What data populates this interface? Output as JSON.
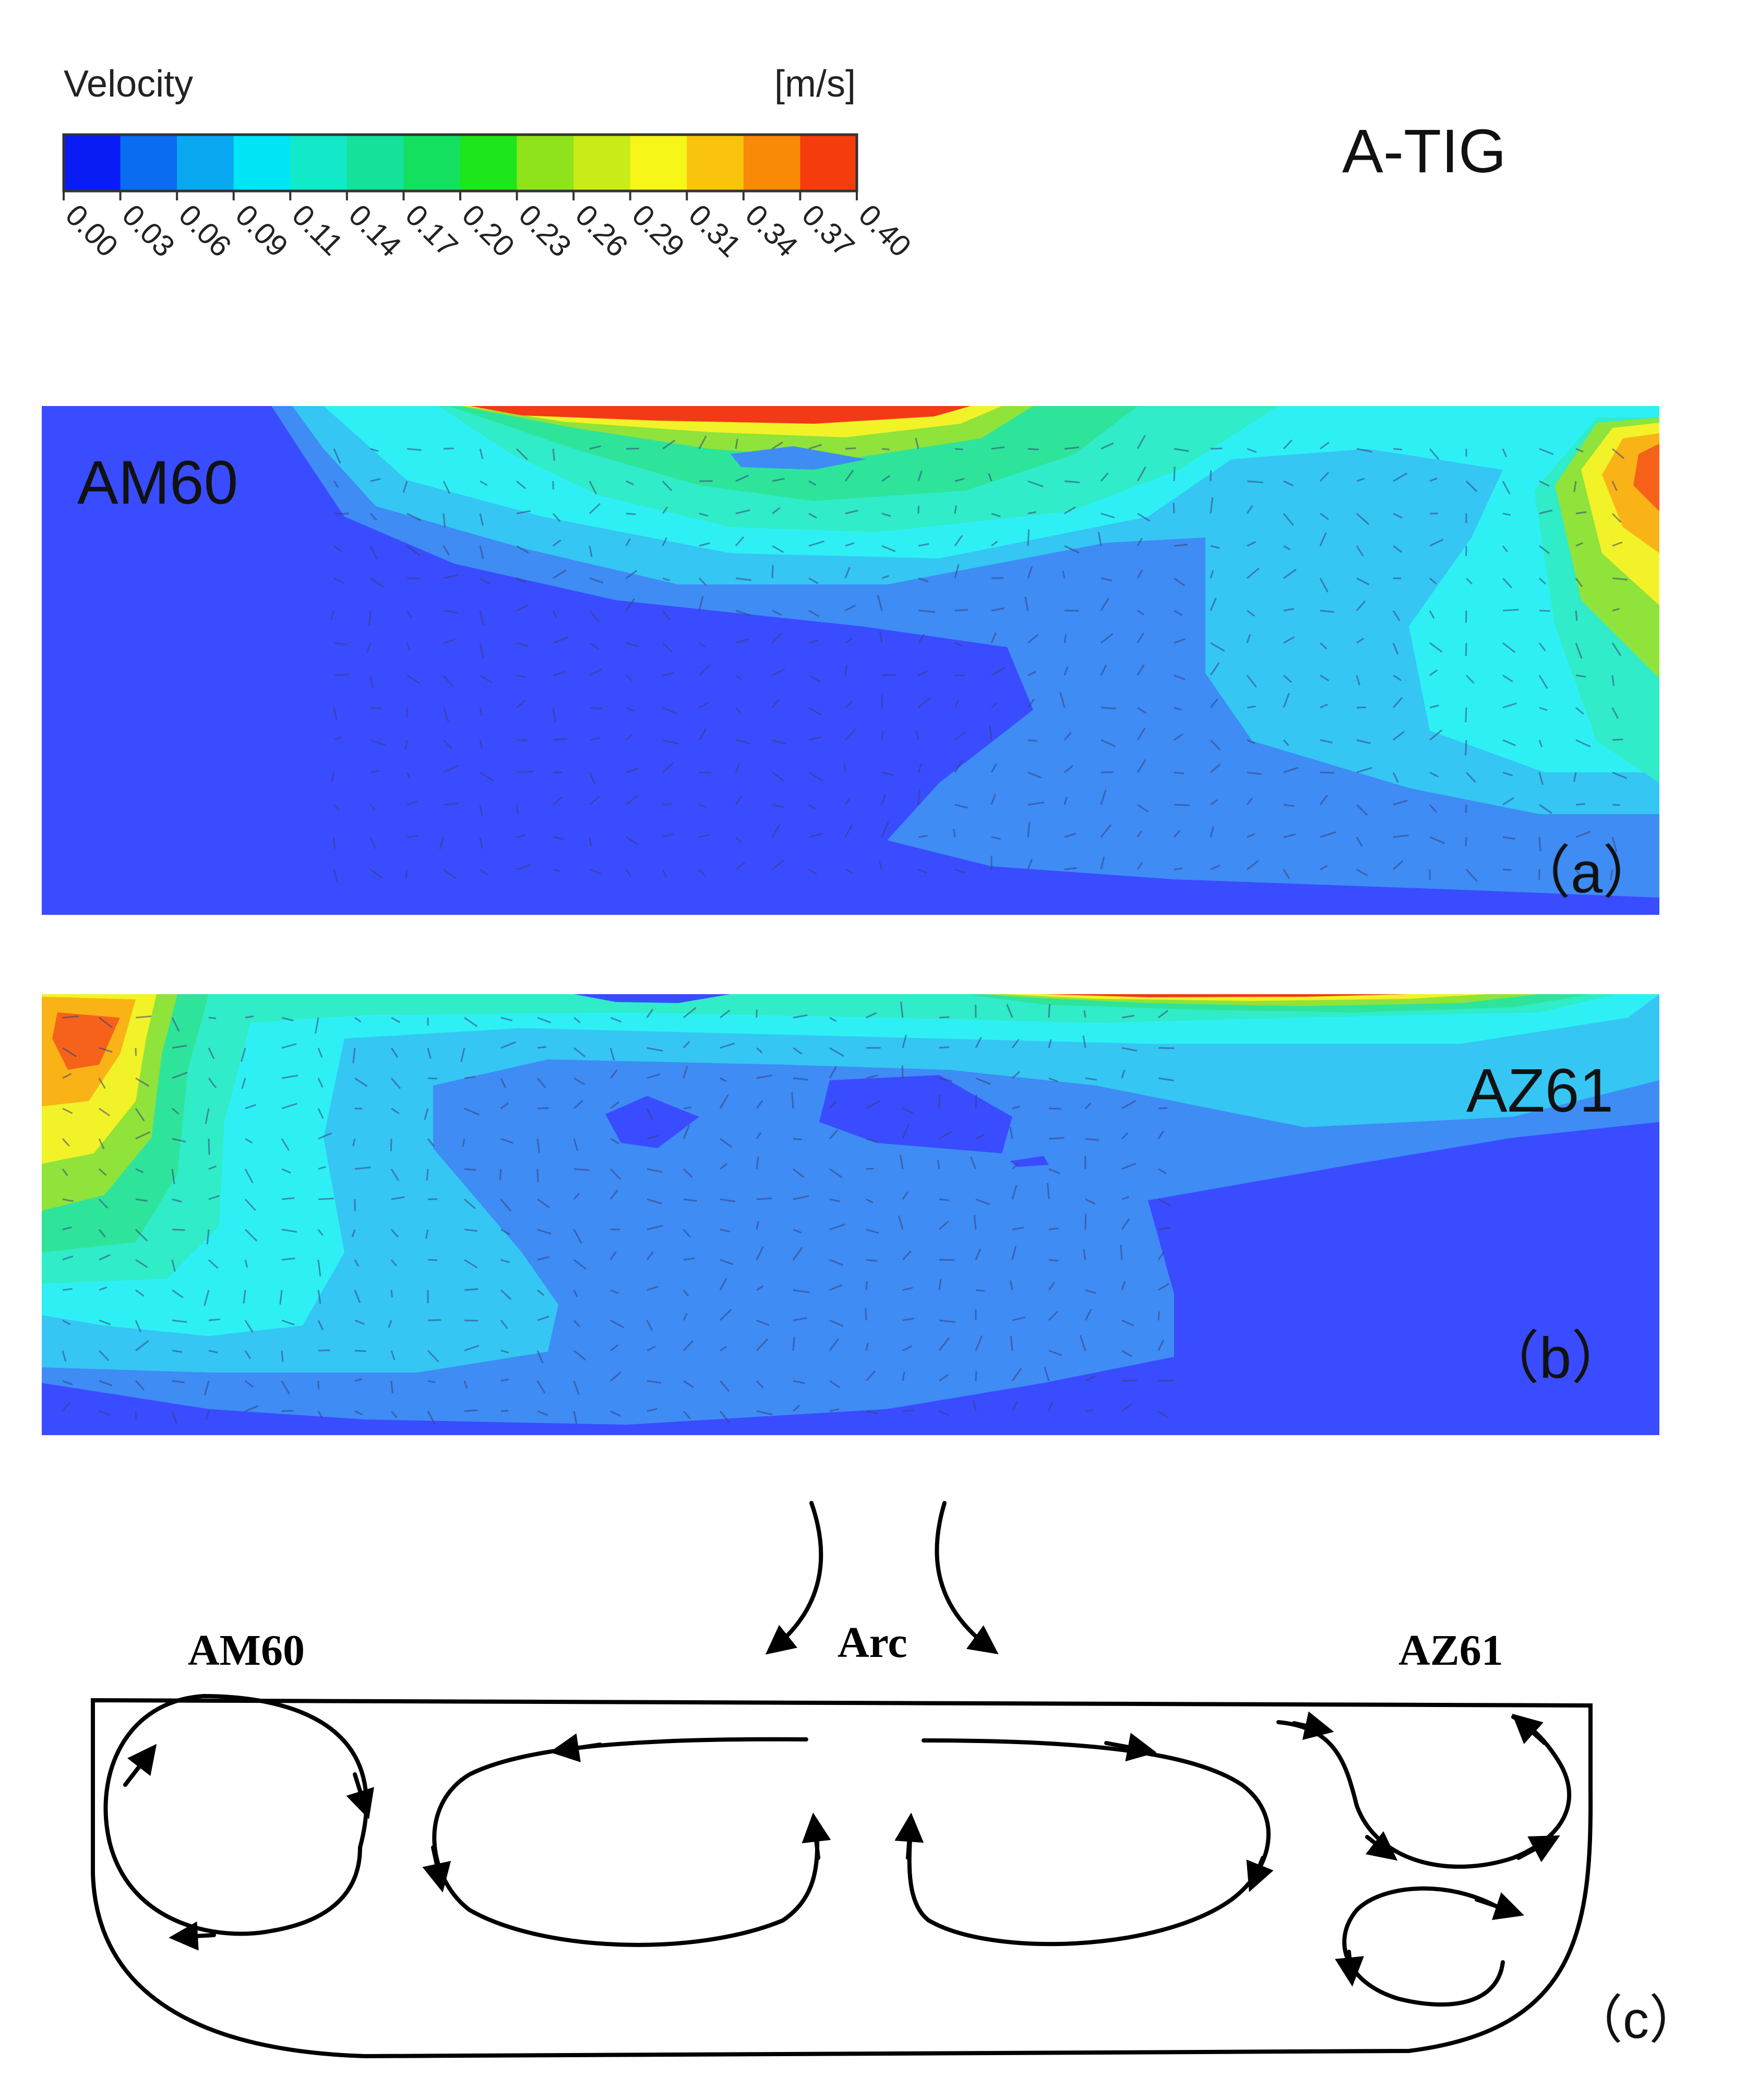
{
  "legend": {
    "title": "Velocity",
    "unit": "[m/s]",
    "ticks": [
      "0.00",
      "0.03",
      "0.06",
      "0.09",
      "0.11",
      "0.14",
      "0.17",
      "0.20",
      "0.23",
      "0.26",
      "0.29",
      "0.31",
      "0.34",
      "0.37",
      "0.40"
    ],
    "colors": [
      "#0a1cf5",
      "#0a6cf0",
      "#0aa8f0",
      "#00e6f6",
      "#12e9c8",
      "#14e29a",
      "#14e060",
      "#1de61a",
      "#8ee31a",
      "#c9ec18",
      "#f6f619",
      "#fac40c",
      "#f98a07",
      "#f53c0d"
    ]
  },
  "header_label": "A-TIG",
  "panel_a": {
    "material": "AM60",
    "caption": "（a）"
  },
  "panel_b": {
    "material": "AZ61",
    "caption": "（b）"
  },
  "panel_c": {
    "left_label": "AM60",
    "center_label": "Arc",
    "right_label": "AZ61",
    "caption": "（c）"
  },
  "colors": {
    "c0": "#3a4cff",
    "c1": "#3e8cf4",
    "c2": "#35c6f4",
    "c3": "#2ef0f4",
    "c4": "#30ecc8",
    "c5": "#2ee49a",
    "c6": "#30e060",
    "c7": "#8fe33a",
    "c8": "#f2f229",
    "c9": "#fab317",
    "c10": "#f6621a",
    "c11": "#f23a16"
  }
}
